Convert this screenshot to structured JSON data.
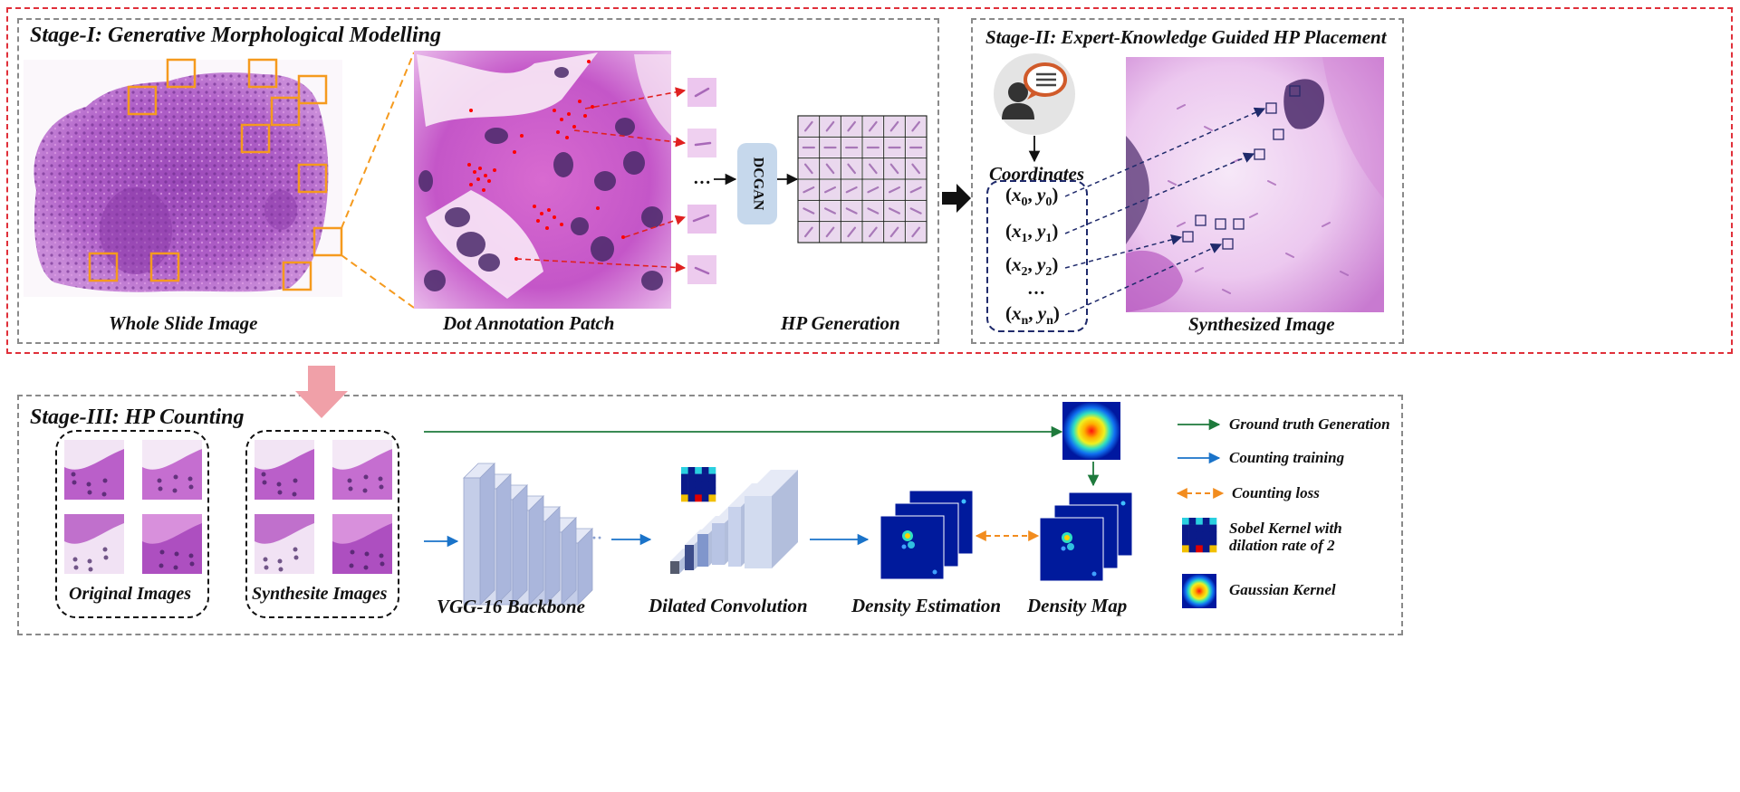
{
  "stage1": {
    "title_bold": "Stage-I",
    "title_rest": ": Generative Morphological Modelling",
    "captions": [
      "Whole Slide Image",
      "Dot Annotation Patch",
      "HP Generation"
    ],
    "model_label": "DCGAN",
    "ellipsis": "···"
  },
  "stage2": {
    "title_bold": "Stage-II",
    "title_rest": ": Expert-Knowledge Guided HP  Placement",
    "coordinates_label": "Coordinates",
    "coords": [
      {
        "x": "x",
        "xs": "0",
        "y": "y",
        "ys": "0"
      },
      {
        "x": "x",
        "xs": "1",
        "y": "y",
        "ys": "1"
      },
      {
        "x": "x",
        "xs": "2",
        "y": "y",
        "ys": "2"
      },
      {
        "x": "x",
        "xs": "n",
        "y": "y",
        "ys": "n"
      }
    ],
    "coord_dots": "…",
    "caption": "Synthesized Image"
  },
  "stage3": {
    "title_bold": "Stage-III",
    "title_rest": ": HP Counting",
    "captions": {
      "original": "Original Images",
      "synthetic": "Synthesite Images",
      "backbone": "VGG-16 Backbone",
      "dilated": "Dilated Convolution",
      "density_estimation": "Density Estimation",
      "density_map": "Density Map"
    }
  },
  "legend": [
    {
      "label": "Ground truth Generation",
      "color": "#1e7a3c"
    },
    {
      "label": "Counting training",
      "color": "#1a73c9"
    },
    {
      "label": "Counting loss",
      "color": "#f28c1e"
    },
    {
      "label": "Sobel Kernel with dilation rate of 2",
      "color": "#000080"
    },
    {
      "label": "Gaussian Kernel",
      "color": "#e00000"
    }
  ],
  "colors": {
    "outer_dash": "#e0303a",
    "inner_dash": "#888888",
    "orange_box": "#f59a1e",
    "tissue": "#b25cc6",
    "stage_arrow": "#f0a0a8",
    "density_bg": "#001a9c"
  }
}
